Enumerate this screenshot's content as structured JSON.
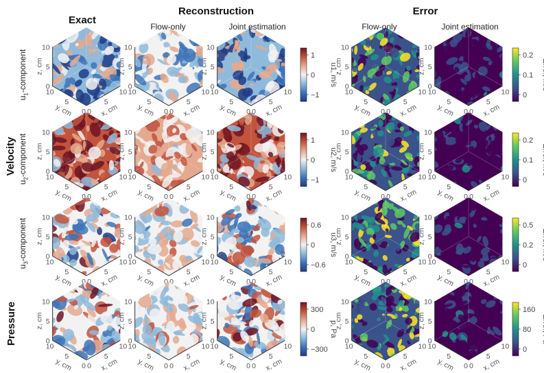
{
  "headers": {
    "exact": "Exact",
    "reconstruction": "Reconstruction",
    "error": "Error",
    "flow_only": "Flow-only",
    "joint": "Joint estimation",
    "flow_only_err": "Flow-only",
    "joint_err": "Joint estimation"
  },
  "side_labels": {
    "velocity": "Velocity",
    "pressure": "Pressure"
  },
  "rows": [
    {
      "name": "u1",
      "label_main": "u",
      "label_sub": "1",
      "label_rest": "-component",
      "cb_signed_label": "u1, m/s",
      "cb_signed_ticks": [
        "1",
        "0",
        "−1"
      ],
      "cb_err_label": "Error, m/s",
      "cb_err_ticks": [
        "0.2",
        "0.1",
        "0"
      ]
    },
    {
      "name": "u2",
      "label_main": "u",
      "label_sub": "2",
      "label_rest": "-component",
      "cb_signed_label": "u2, m/s",
      "cb_signed_ticks": [
        "1",
        "0",
        "−1"
      ],
      "cb_err_label": "Error, m/s",
      "cb_err_ticks": [
        "0.2",
        "0.1",
        "0"
      ]
    },
    {
      "name": "u3",
      "label_main": "u",
      "label_sub": "3",
      "label_rest": "-component",
      "cb_signed_label": "u3, m/s",
      "cb_signed_ticks": [
        "0.6",
        "0",
        "−0.6"
      ],
      "cb_err_label": "Error, m/s",
      "cb_err_ticks": [
        "0.5",
        "0.2",
        "0"
      ]
    },
    {
      "name": "p",
      "label_main": "",
      "label_sub": "",
      "label_rest": "",
      "cb_signed_label": "p, Pa",
      "cb_signed_ticks": [
        "300",
        "0",
        "−300"
      ],
      "cb_err_label": "Error, Pa",
      "cb_err_ticks": [
        "160",
        "80",
        "0"
      ]
    }
  ],
  "axes": {
    "z_label": "z, cm",
    "y_label": "y, cm",
    "x_label": "x, cm",
    "z_ticks": [
      "10",
      "5",
      "0"
    ],
    "y_ticks": [
      "10",
      "5",
      "0"
    ],
    "x_ticks": [
      "0",
      "5",
      "10"
    ]
  },
  "colors": {
    "diverging": [
      "#1f3c86",
      "#3d74b8",
      "#8fbadb",
      "#f2f2f2",
      "#e5a98f",
      "#c2543d",
      "#6e1523"
    ],
    "viridis": [
      "#440154",
      "#3b528b",
      "#21908d",
      "#5dc963",
      "#fde725"
    ]
  }
}
